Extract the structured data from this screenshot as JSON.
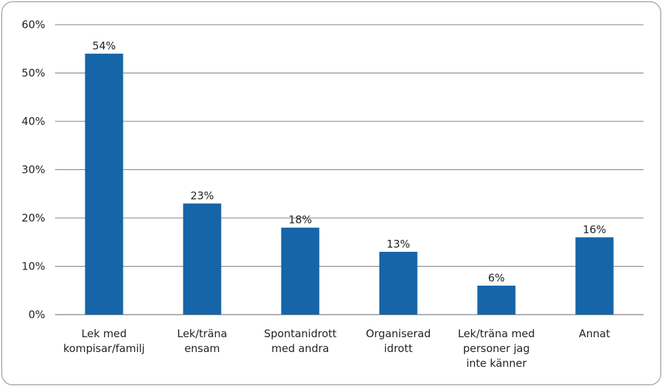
{
  "chart_data": {
    "type": "bar",
    "categories": [
      [
        "Lek med",
        "kompisar/familj"
      ],
      [
        "Lek/träna",
        "ensam"
      ],
      [
        "Spontanidrott",
        "med andra"
      ],
      [
        "Organiserad",
        "idrott"
      ],
      [
        "Lek/träna med",
        "personer jag",
        "inte känner"
      ],
      [
        "Annat"
      ]
    ],
    "values": [
      54,
      23,
      18,
      13,
      6,
      16
    ],
    "data_labels": [
      "54%",
      "23%",
      "18%",
      "13%",
      "6%",
      "16%"
    ],
    "y_ticks": [
      {
        "value": 0,
        "label": "0%"
      },
      {
        "value": 10,
        "label": "10%"
      },
      {
        "value": 20,
        "label": "20%"
      },
      {
        "value": 30,
        "label": "30%"
      },
      {
        "value": 40,
        "label": "40%"
      },
      {
        "value": 50,
        "label": "50%"
      },
      {
        "value": 60,
        "label": "60%"
      }
    ],
    "ylim": [
      0,
      60
    ],
    "grid": true,
    "colors": {
      "bar": "#1565a8",
      "grid": "#7f7f7f",
      "frame": "#8c8c8c"
    }
  }
}
